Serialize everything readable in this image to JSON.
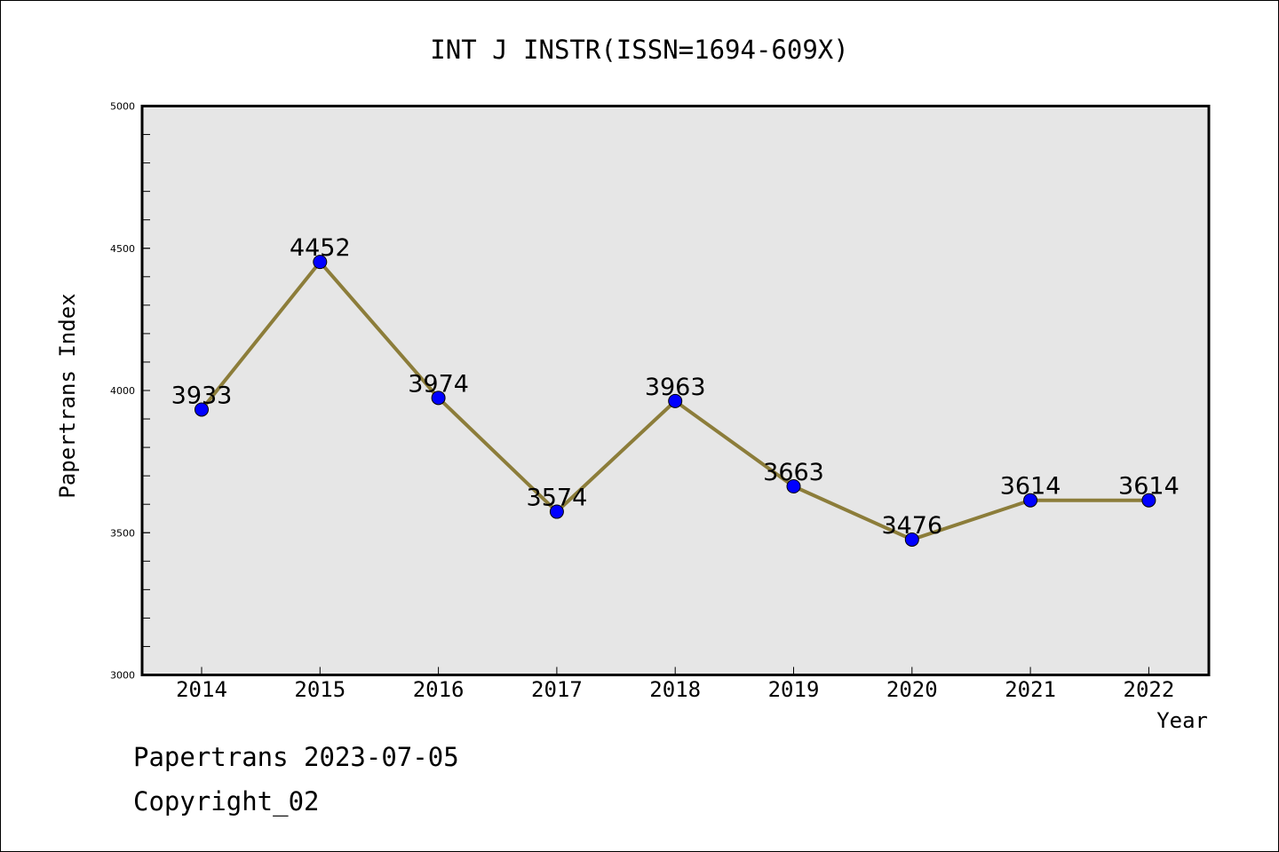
{
  "chart_data": {
    "type": "line",
    "title": "INT J INSTR(ISSN=1694-609X)",
    "xlabel": "Year",
    "ylabel": "Papertrans Index",
    "categories": [
      "2014",
      "2015",
      "2016",
      "2017",
      "2018",
      "2019",
      "2020",
      "2021",
      "2022"
    ],
    "series": [
      {
        "values": [
          3933,
          4452,
          3974,
          3574,
          3963,
          3663,
          3476,
          3614,
          3614
        ]
      }
    ],
    "data_labels": [
      "3933",
      "4452",
      "3974",
      "3574",
      "3963",
      "3663",
      "3476",
      "3614",
      "3614"
    ],
    "ylim": [
      3000,
      5000
    ],
    "yticks": [
      "3000",
      "3500",
      "4000",
      "4500",
      "5000"
    ],
    "grid": false,
    "legend": "none",
    "colors": {
      "line": "#8c7d3a",
      "marker": "#0000ff",
      "plot_bg": "#e6e6e6"
    }
  },
  "footer": {
    "line1": "Papertrans 2023-07-05",
    "line2": "Copyright_02"
  }
}
